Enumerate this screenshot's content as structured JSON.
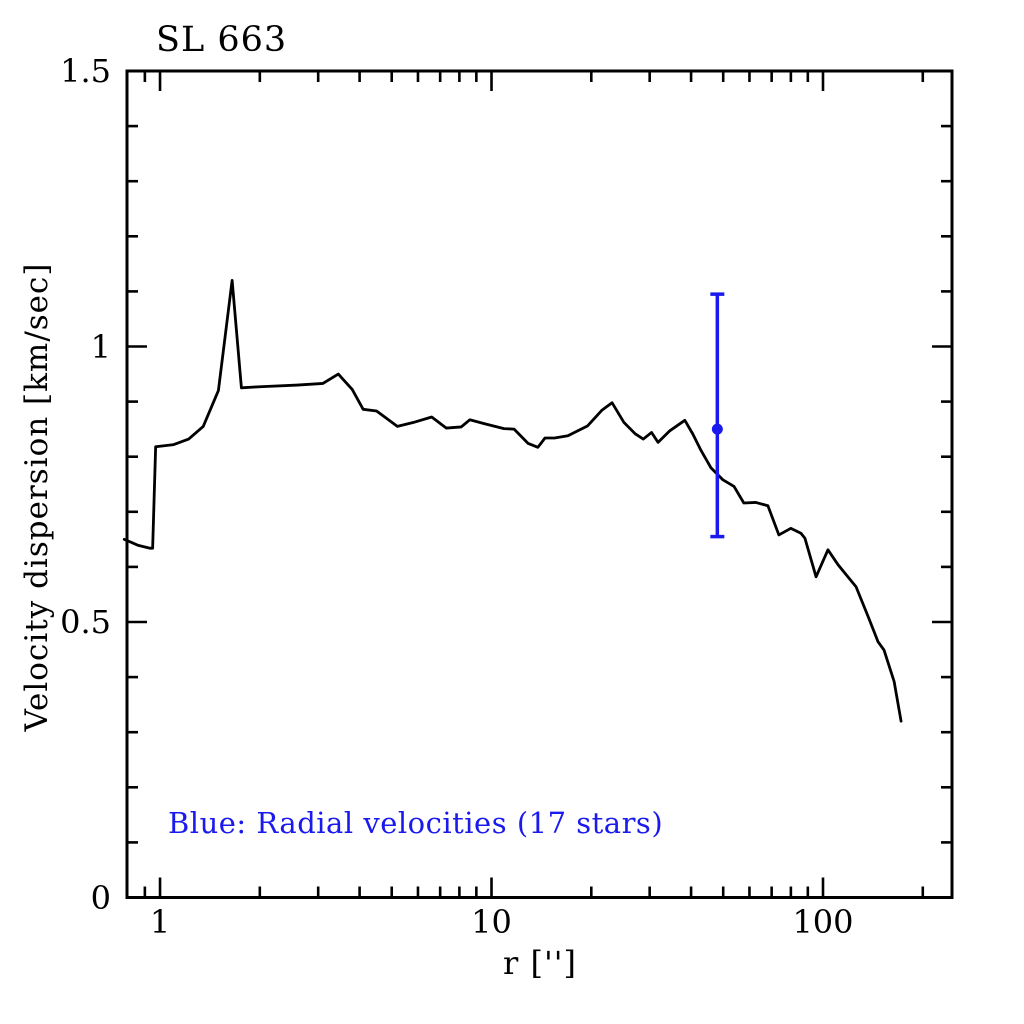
{
  "title": "SL 663",
  "axes": {
    "xlabel": "r ['']",
    "ylabel": "Velocity dispersion [km/sec]"
  },
  "annotation": {
    "text": "Blue: Radial velocities (17 stars)",
    "color": "#1a1aee"
  },
  "colors": {
    "background": "#ffffff",
    "frame": "#000000",
    "curve": "#000000",
    "radial_velocity_marker": "#1a1aee"
  },
  "chart_data": {
    "type": "line",
    "title": "SL 663",
    "xlabel": "r ['']",
    "ylabel": "Velocity dispersion [km/sec]",
    "xscale": "log",
    "xlim": [
      0.795,
      245
    ],
    "ylim": [
      0,
      1.5
    ],
    "x_ticks": [
      1,
      10,
      100
    ],
    "x_tick_labels": [
      "1",
      "10",
      "100"
    ],
    "x_minor_ticks": [
      0.9,
      2,
      3,
      4,
      5,
      6,
      7,
      8,
      9,
      20,
      30,
      40,
      50,
      60,
      70,
      80,
      90,
      200
    ],
    "y_ticks": [
      0,
      0.5,
      1,
      1.5
    ],
    "y_tick_labels": [
      "0",
      "0.5",
      "1",
      "1.5"
    ],
    "y_minor_tick_step": 0.1,
    "grid": false,
    "legend_position": "none",
    "series": [
      {
        "name": "velocity dispersion profile",
        "type": "line",
        "color": "#000000",
        "points": [
          [
            0.78,
            0.65
          ],
          [
            0.86,
            0.639
          ],
          [
            0.93,
            0.634
          ],
          [
            0.95,
            0.634
          ],
          [
            0.97,
            0.818
          ],
          [
            1.1,
            0.822
          ],
          [
            1.22,
            0.832
          ],
          [
            1.35,
            0.855
          ],
          [
            1.5,
            0.92
          ],
          [
            1.65,
            1.12
          ],
          [
            1.76,
            0.925
          ],
          [
            2.0,
            0.927
          ],
          [
            2.6,
            0.93
          ],
          [
            3.1,
            0.933
          ],
          [
            3.45,
            0.95
          ],
          [
            3.8,
            0.922
          ],
          [
            4.1,
            0.886
          ],
          [
            4.5,
            0.883
          ],
          [
            5.2,
            0.855
          ],
          [
            5.8,
            0.862
          ],
          [
            6.6,
            0.872
          ],
          [
            7.3,
            0.852
          ],
          [
            8.1,
            0.854
          ],
          [
            8.6,
            0.867
          ],
          [
            9.5,
            0.86
          ],
          [
            10.9,
            0.851
          ],
          [
            11.7,
            0.85
          ],
          [
            12.9,
            0.824
          ],
          [
            13.8,
            0.817
          ],
          [
            14.5,
            0.834
          ],
          [
            15.5,
            0.834
          ],
          [
            17.0,
            0.838
          ],
          [
            19.5,
            0.856
          ],
          [
            21.5,
            0.884
          ],
          [
            23.1,
            0.898
          ],
          [
            25.1,
            0.862
          ],
          [
            27.2,
            0.841
          ],
          [
            28.7,
            0.832
          ],
          [
            30.4,
            0.844
          ],
          [
            31.8,
            0.826
          ],
          [
            34.5,
            0.847
          ],
          [
            38.3,
            0.866
          ],
          [
            40.5,
            0.841
          ],
          [
            42.8,
            0.812
          ],
          [
            45.9,
            0.78
          ],
          [
            49.9,
            0.758
          ],
          [
            53.9,
            0.746
          ],
          [
            57.7,
            0.716
          ],
          [
            62.7,
            0.717
          ],
          [
            68.2,
            0.711
          ],
          [
            73.6,
            0.658
          ],
          [
            80.0,
            0.67
          ],
          [
            85.8,
            0.661
          ],
          [
            88.2,
            0.652
          ],
          [
            95.3,
            0.582
          ],
          [
            103.5,
            0.631
          ],
          [
            111.0,
            0.604
          ],
          [
            117.4,
            0.586
          ],
          [
            125.8,
            0.564
          ],
          [
            136.8,
            0.51
          ],
          [
            146.6,
            0.464
          ],
          [
            152.8,
            0.449
          ],
          [
            163.9,
            0.392
          ],
          [
            172.0,
            0.32
          ]
        ]
      },
      {
        "name": "Radial velocities (17 stars)",
        "type": "scatter-errorbar",
        "color": "#1a1aee",
        "points": [
          {
            "x": 48,
            "y": 0.85,
            "y_err_low": 0.655,
            "y_err_high": 1.095
          }
        ]
      }
    ],
    "annotations": [
      {
        "text": "Blue: Radial velocities (17 stars)",
        "color": "#1a1aee",
        "x": 1.05,
        "y": 0.19
      }
    ]
  }
}
